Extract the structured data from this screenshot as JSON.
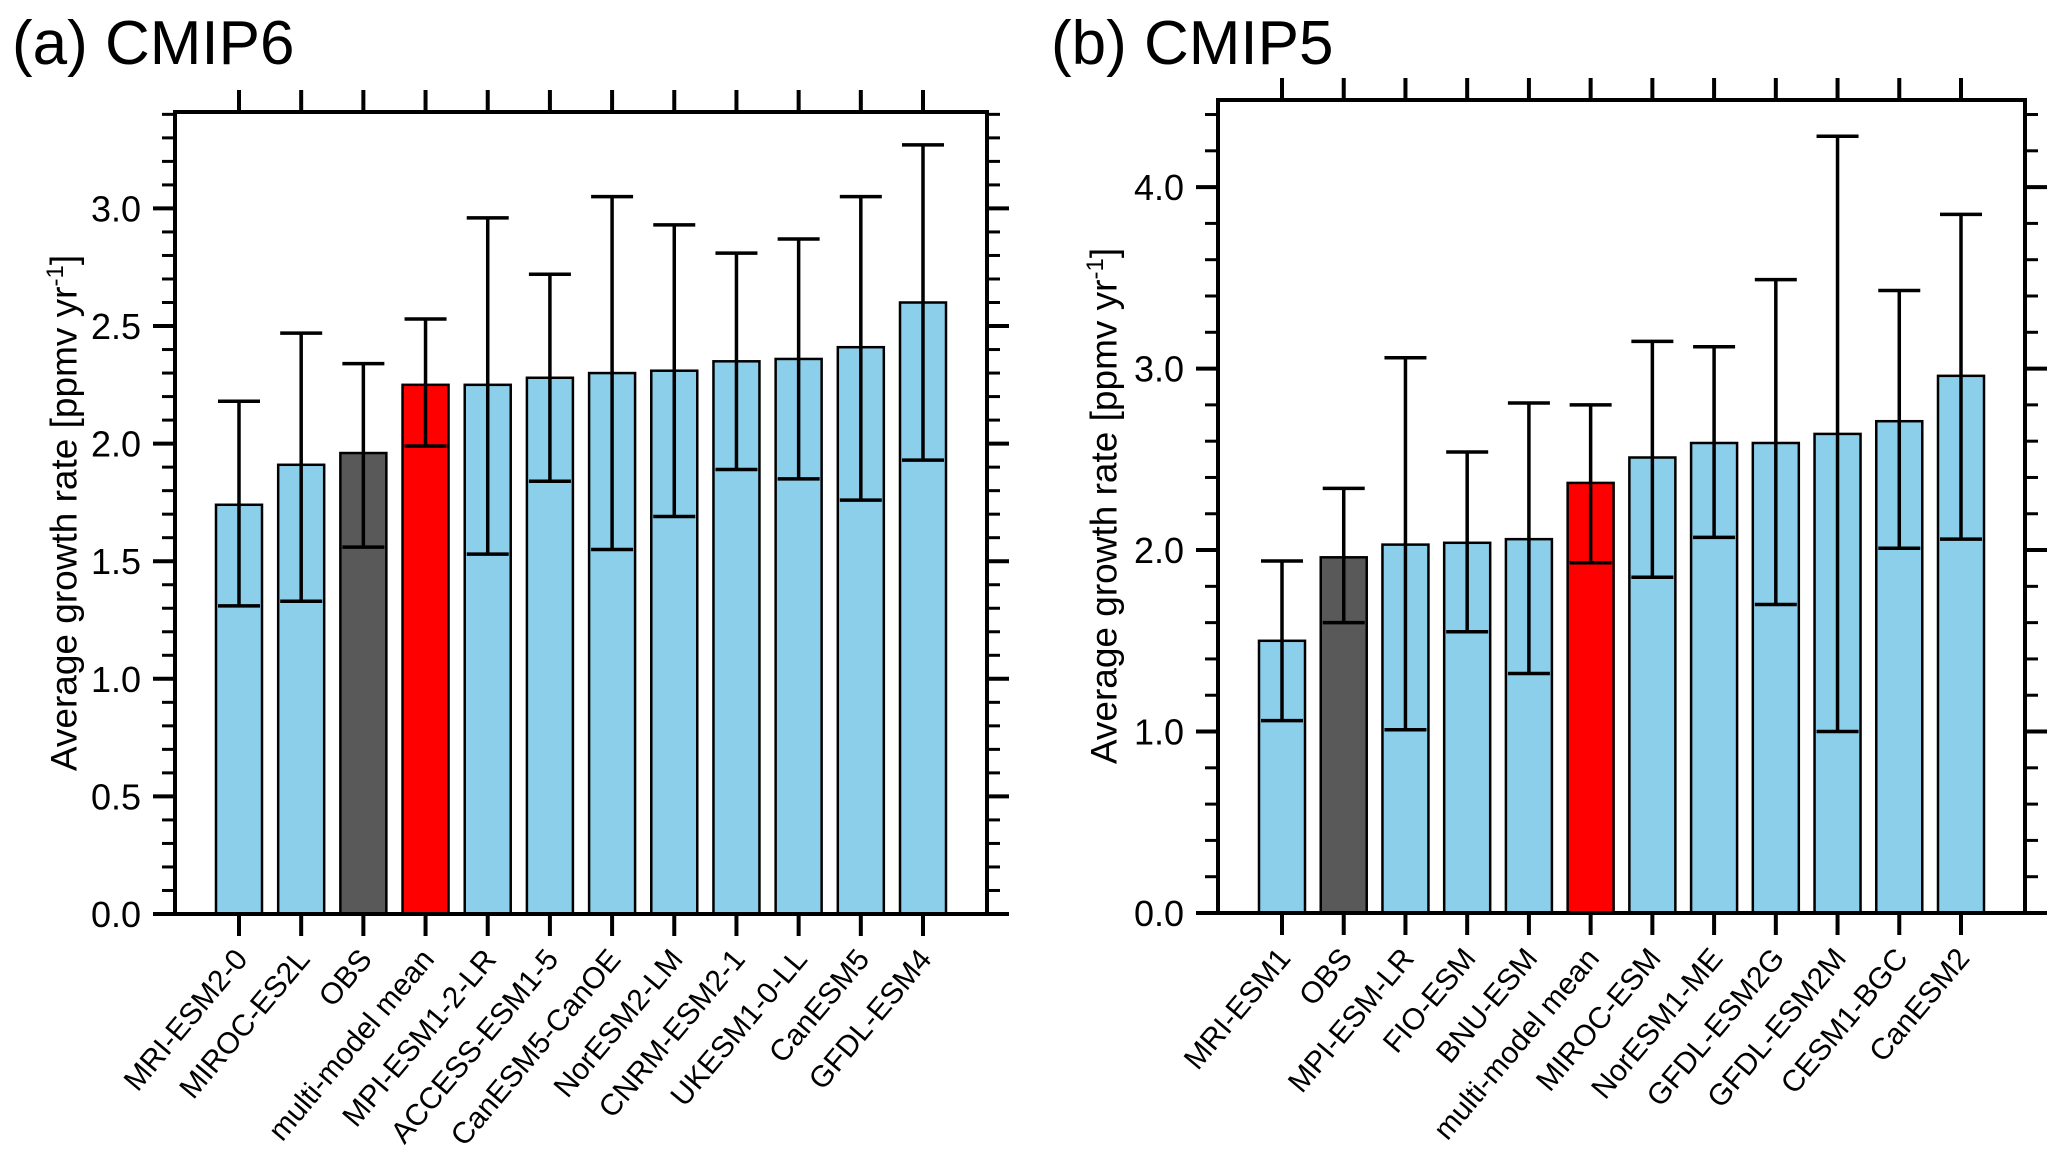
{
  "page": {
    "background": "#ffffff"
  },
  "colors": {
    "model_bar": "#8CCFEA",
    "obs_bar": "#595959",
    "mean_bar": "#FF0000",
    "axis": "#000000"
  },
  "panels": [
    {
      "id": "a",
      "title": "(a) CMIP6",
      "ylabel_prefix": "Average growth rate [ppmv yr",
      "ylabel_sup": "-1",
      "ylabel_suffix": "]"
    },
    {
      "id": "b",
      "title": "(b) CMIP5",
      "ylabel_prefix": "Average growth rate [ppmv yr",
      "ylabel_sup": "-1",
      "ylabel_suffix": "]"
    }
  ],
  "chart_data": [
    {
      "type": "bar",
      "title": "(a) CMIP6",
      "xlabel": "",
      "ylabel": "Average growth rate [ppmv yr⁻¹]",
      "categories": [
        "MRI-ESM2-0",
        "MIROC-ES2L",
        "OBS",
        "multi-model mean",
        "MPI-ESM1-2-LR",
        "ACCESS-ESM1-5",
        "CanESM5-CanOE",
        "NorESM2-LM",
        "CNRM-ESM2-1",
        "UKESM1-0-LL",
        "CanESM5",
        "GFDL-ESM4"
      ],
      "values": [
        1.74,
        1.91,
        1.96,
        2.25,
        2.25,
        2.28,
        2.3,
        2.31,
        2.35,
        2.36,
        2.41,
        2.6
      ],
      "err_lo": [
        1.31,
        1.33,
        1.56,
        1.99,
        1.53,
        1.84,
        1.55,
        1.69,
        1.89,
        1.85,
        1.76,
        1.93
      ],
      "err_hi": [
        2.18,
        2.47,
        2.34,
        2.53,
        2.96,
        2.72,
        3.05,
        2.93,
        2.81,
        2.87,
        3.05,
        3.27
      ],
      "roles": [
        "model",
        "model",
        "obs",
        "mean",
        "model",
        "model",
        "model",
        "model",
        "model",
        "model",
        "model",
        "model"
      ],
      "ylim": [
        0,
        3.41
      ],
      "ytick_major": 0.5,
      "ytick_minor": 0.1,
      "ytick_labels": [
        "0.0",
        "0.5",
        "1.0",
        "1.5",
        "2.0",
        "2.5",
        "3.0"
      ],
      "grid": false,
      "legend": false
    },
    {
      "type": "bar",
      "title": "(b) CMIP5",
      "xlabel": "",
      "ylabel": "Average growth rate [ppmv yr⁻¹]",
      "categories": [
        "MRI-ESM1",
        "OBS",
        "MPI-ESM-LR",
        "FIO-ESM",
        "BNU-ESM",
        "multi-model mean",
        "MIROC-ESM",
        "NorESM1-ME",
        "GFDL-ESM2G",
        "GFDL-ESM2M",
        "CESM1-BGC",
        "CanESM2"
      ],
      "values": [
        1.5,
        1.96,
        2.03,
        2.04,
        2.06,
        2.37,
        2.51,
        2.59,
        2.59,
        2.64,
        2.71,
        2.96
      ],
      "err_lo": [
        1.06,
        1.6,
        1.01,
        1.55,
        1.32,
        1.93,
        1.85,
        2.07,
        1.7,
        1.0,
        2.01,
        2.06
      ],
      "err_hi": [
        1.94,
        2.34,
        3.06,
        2.54,
        2.81,
        2.8,
        3.15,
        3.12,
        3.49,
        4.28,
        3.43,
        3.85
      ],
      "roles": [
        "model",
        "obs",
        "model",
        "model",
        "model",
        "mean",
        "model",
        "model",
        "model",
        "model",
        "model",
        "model"
      ],
      "ylim": [
        0,
        4.48
      ],
      "ytick_major": 1.0,
      "ytick_minor": 0.2,
      "ytick_labels": [
        "0.0",
        "1.0",
        "2.0",
        "3.0",
        "4.0"
      ],
      "grid": false,
      "legend": false
    }
  ]
}
